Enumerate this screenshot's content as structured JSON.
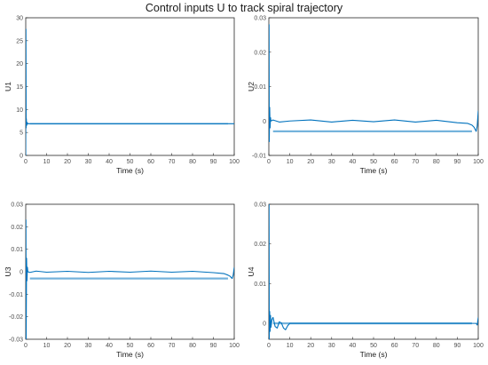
{
  "figure": {
    "title": "Control inputs U to track spiral trajectory"
  },
  "chart_data": [
    {
      "type": "line",
      "ylabel": "U1",
      "xlabel": "Time (s)",
      "xlim": [
        0,
        100
      ],
      "ylim": [
        0,
        30
      ],
      "xticks": [
        0,
        10,
        20,
        30,
        40,
        50,
        60,
        70,
        80,
        90,
        100
      ],
      "yticks": [
        0,
        5,
        10,
        15,
        20,
        25,
        30
      ],
      "ytick_labels": [
        "0",
        "5",
        "10",
        "15",
        "20",
        "25",
        "30"
      ],
      "grid": false,
      "color": "#0072bd",
      "series": [
        {
          "x": [
            0,
            0.1,
            0.2,
            0.3,
            0.4,
            0.6,
            0.8,
            1.0,
            1.5,
            2,
            5,
            10,
            20,
            30,
            40,
            50,
            60,
            70,
            80,
            90,
            95,
            99,
            100
          ],
          "y": [
            0,
            27.5,
            6.0,
            8.0,
            6.5,
            7.2,
            6.8,
            7.0,
            6.9,
            6.9,
            6.9,
            6.9,
            6.9,
            6.9,
            6.9,
            6.9,
            6.9,
            6.9,
            6.9,
            6.9,
            6.9,
            6.9,
            6.9
          ]
        }
      ]
    },
    {
      "type": "line",
      "ylabel": "U2",
      "xlabel": "Time (s)",
      "xlim": [
        0,
        100
      ],
      "ylim": [
        -0.01,
        0.03
      ],
      "xticks": [
        0,
        10,
        20,
        30,
        40,
        50,
        60,
        70,
        80,
        90,
        100
      ],
      "yticks": [
        -0.01,
        0,
        0.01,
        0.02,
        0.03
      ],
      "ytick_labels": [
        "-0.01",
        "0",
        "0.01",
        "0.02",
        "0.03"
      ],
      "grid": false,
      "color": "#0072bd",
      "series": [
        {
          "x": [
            0,
            0.1,
            0.2,
            0.4,
            0.6,
            0.8,
            1,
            2,
            5,
            10,
            20,
            30,
            40,
            50,
            60,
            70,
            80,
            90,
            95,
            97,
            98,
            99,
            99.5,
            100
          ],
          "y": [
            0,
            0.028,
            -0.006,
            0.004,
            -0.002,
            0.001,
            0,
            0.0003,
            -0.0003,
            0,
            0.0003,
            -0.0003,
            0.0002,
            -0.0002,
            0.0003,
            -0.0003,
            0.0002,
            -0.0005,
            -0.0007,
            -0.0012,
            -0.0018,
            -0.003,
            -0.0015,
            0.003
          ]
        }
      ]
    },
    {
      "type": "line",
      "ylabel": "U3",
      "xlabel": "Time (s)",
      "xlim": [
        0,
        100
      ],
      "ylim": [
        -0.03,
        0.03
      ],
      "xticks": [
        0,
        10,
        20,
        30,
        40,
        50,
        60,
        70,
        80,
        90,
        100
      ],
      "yticks": [
        -0.03,
        -0.02,
        -0.01,
        0,
        0.01,
        0.02,
        0.03
      ],
      "ytick_labels": [
        "-0.03",
        "-0.02",
        "-0.01",
        "0",
        "0.01",
        "0.02",
        "0.03"
      ],
      "grid": false,
      "color": "#0072bd",
      "series": [
        {
          "x": [
            0,
            0.1,
            0.2,
            0.4,
            0.6,
            0.8,
            1,
            2,
            5,
            10,
            20,
            30,
            40,
            50,
            60,
            70,
            80,
            90,
            95,
            97,
            98,
            99,
            99.5,
            100
          ],
          "y": [
            0,
            0.023,
            -0.03,
            0.006,
            -0.004,
            0.002,
            0,
            -0.0003,
            0.0003,
            -0.0002,
            0.0002,
            -0.0003,
            0.0002,
            -0.0002,
            0.0003,
            -0.0002,
            0.0002,
            -0.0004,
            -0.0008,
            -0.0015,
            -0.002,
            -0.003,
            -0.0015,
            0.002
          ]
        }
      ]
    },
    {
      "type": "line",
      "ylabel": "U4",
      "xlabel": "Time (s)",
      "xlim": [
        0,
        100
      ],
      "ylim": [
        -0.004,
        0.03
      ],
      "xticks": [
        0,
        10,
        20,
        30,
        40,
        50,
        60,
        70,
        80,
        90,
        100
      ],
      "yticks": [
        0,
        0.01,
        0.02,
        0.03
      ],
      "ytick_labels": [
        "0",
        "0.01",
        "0.02",
        "0.03"
      ],
      "grid": false,
      "color": "#0072bd",
      "series": [
        {
          "x": [
            0,
            0.1,
            0.2,
            0.4,
            0.6,
            0.8,
            1,
            1.5,
            2,
            3,
            4,
            5,
            6,
            7,
            8,
            9,
            10,
            20,
            30,
            40,
            50,
            60,
            70,
            80,
            90,
            95,
            99,
            99.5,
            100
          ],
          "y": [
            0,
            0.03,
            -0.004,
            0.003,
            -0.002,
            0.002,
            -0.001,
            0.001,
            0.0015,
            -0.0008,
            -0.0012,
            0.0004,
            0.0001,
            -0.0012,
            -0.0016,
            -0.0006,
            0,
            0,
            0,
            0,
            0,
            0,
            0,
            0,
            0,
            0,
            0,
            -0.0004,
            0.0015
          ]
        }
      ]
    }
  ]
}
